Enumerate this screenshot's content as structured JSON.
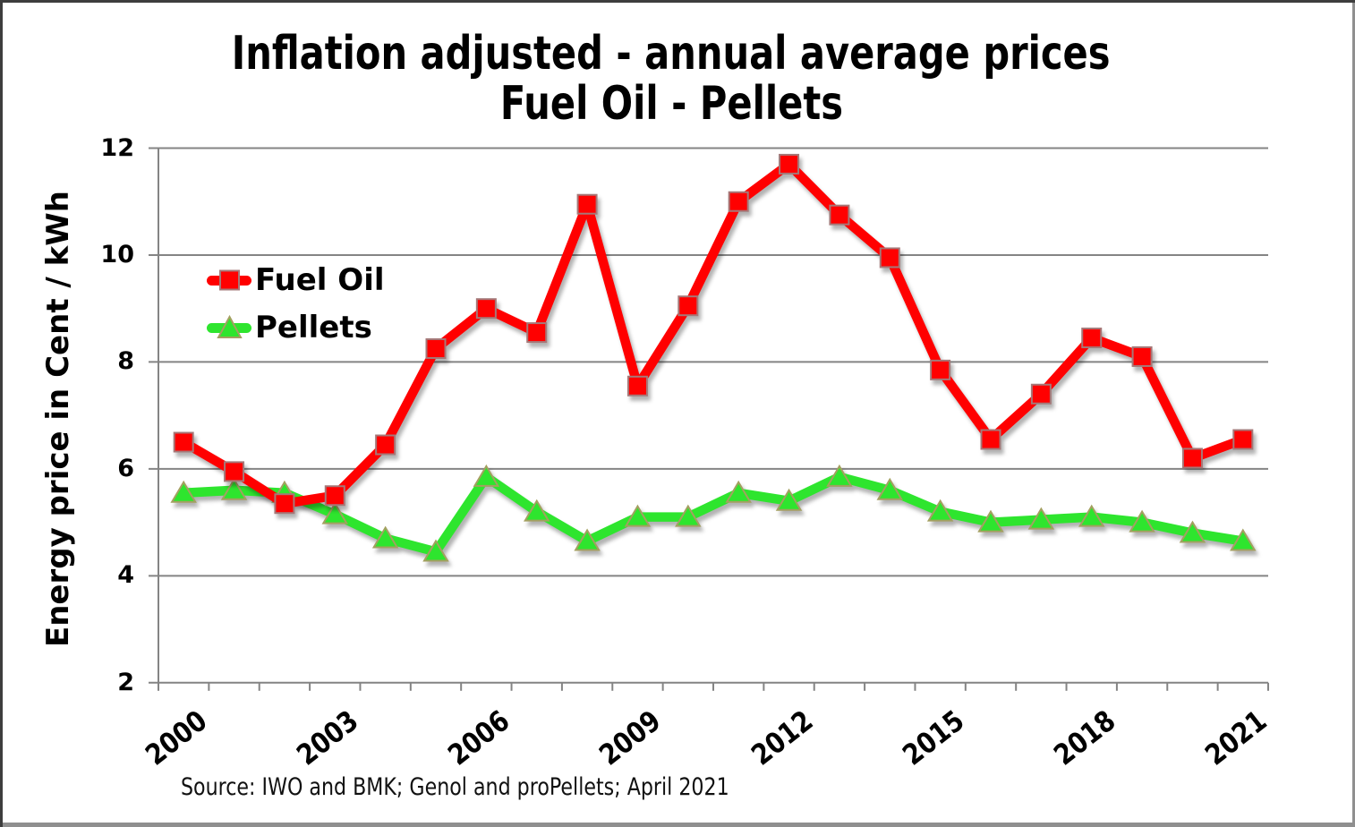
{
  "title": {
    "line1": "Inflation adjusted - annual average prices",
    "line2": "Fuel Oil - Pellets"
  },
  "source_note": "Source: IWO and BMK; Genol and proPellets; April 2021",
  "chart_data": {
    "type": "line",
    "title": "Inflation adjusted - annual average prices Fuel Oil - Pellets",
    "xlabel": "",
    "ylabel": "Energy price in Cent / kWh",
    "ylim": [
      2,
      12
    ],
    "y_ticks": [
      2,
      4,
      6,
      8,
      10,
      12
    ],
    "grid": "horizontal-gridlines-on",
    "legend_position": "inside-upper-left",
    "categories": [
      2000,
      2001,
      2002,
      2003,
      2004,
      2005,
      2006,
      2007,
      2008,
      2009,
      2010,
      2011,
      2012,
      2013,
      2014,
      2015,
      2016,
      2017,
      2018,
      2019,
      2020,
      2021
    ],
    "x_tick_labels_shown": [
      "2000",
      "2003",
      "2006",
      "2009",
      "2012",
      "2015",
      "2018",
      "2021"
    ],
    "series": [
      {
        "name": "Fuel Oil",
        "marker": "square",
        "color": "#ff0000",
        "marker_border": "#a57878",
        "values": [
          6.5,
          5.95,
          5.35,
          5.5,
          6.45,
          8.25,
          9.0,
          8.55,
          10.95,
          7.55,
          9.05,
          11.0,
          11.7,
          10.75,
          9.95,
          7.85,
          6.55,
          7.4,
          8.45,
          8.1,
          6.2,
          6.55
        ]
      },
      {
        "name": "Pellets",
        "marker": "triangle",
        "color": "#2ee52e",
        "marker_border": "#a3a060",
        "values": [
          5.55,
          5.6,
          5.55,
          5.15,
          4.7,
          4.45,
          5.85,
          5.2,
          4.65,
          5.1,
          5.1,
          5.55,
          5.4,
          5.85,
          5.6,
          5.2,
          5.0,
          5.05,
          5.1,
          5.0,
          4.8,
          4.65
        ]
      }
    ],
    "axis_color": "#848484",
    "source_note": "Source: IWO and BMK; Genol and proPellets; April 2021"
  }
}
